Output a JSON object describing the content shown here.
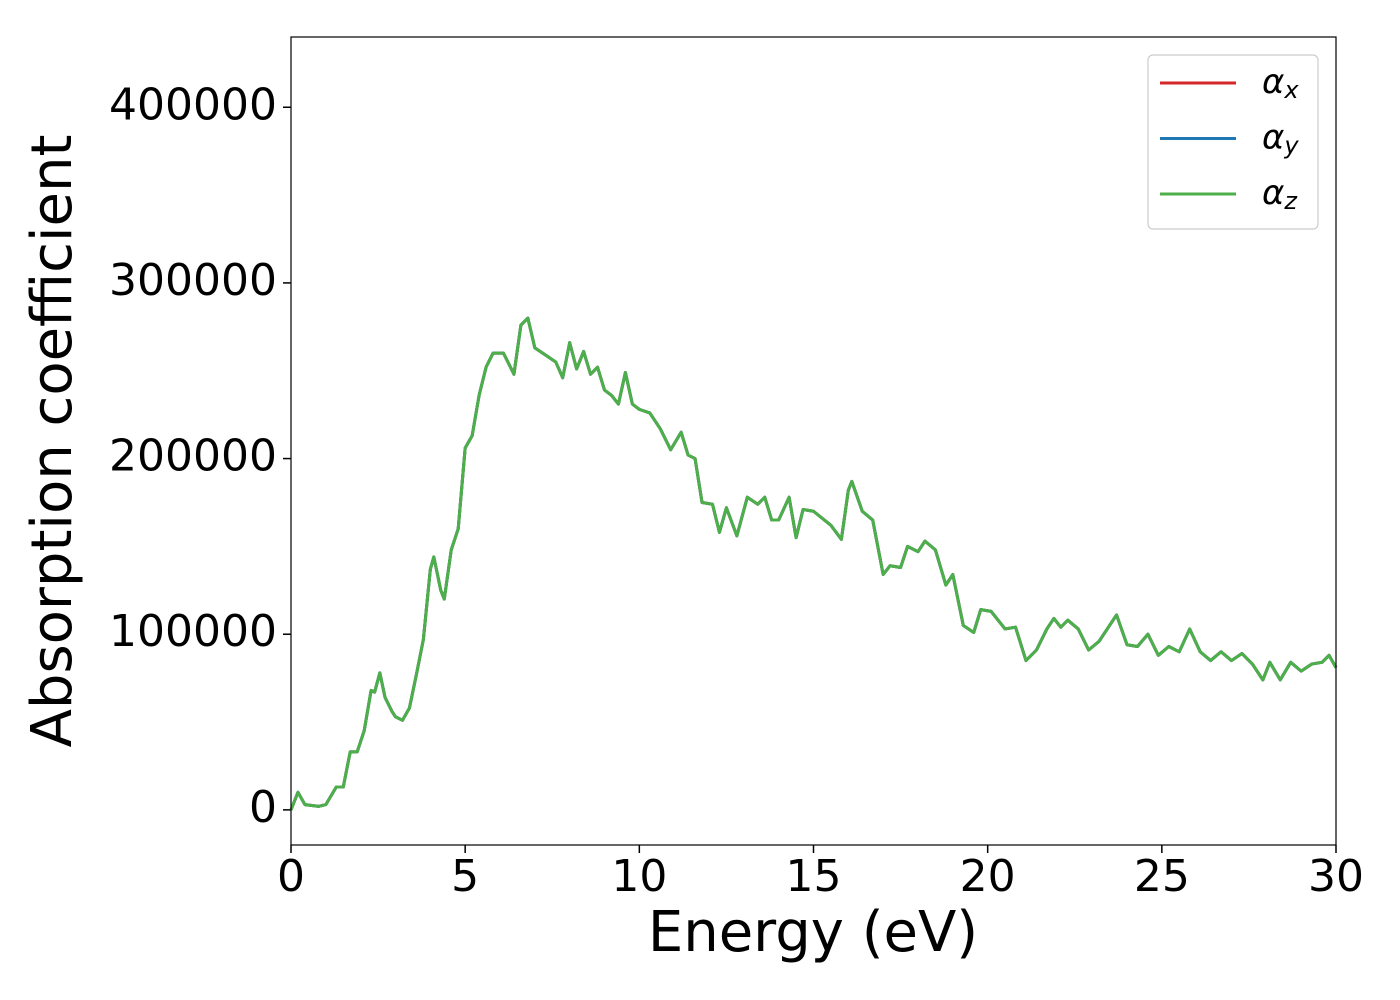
{
  "chart_data": {
    "type": "line",
    "xlabel": "Energy (eV)",
    "ylabel": "Absorption coefficient",
    "x": [
      0,
      0.2,
      0.4,
      0.8,
      1.0,
      1.3,
      1.5,
      1.7,
      1.9,
      2.1,
      2.3,
      2.4,
      2.55,
      2.7,
      2.9,
      3.0,
      3.2,
      3.4,
      3.6,
      3.8,
      4.0,
      4.1,
      4.3,
      4.4,
      4.6,
      4.8,
      5.0,
      5.2,
      5.4,
      5.6,
      5.8,
      6.1,
      6.4,
      6.6,
      6.8,
      7.0,
      7.3,
      7.6,
      7.8,
      8.0,
      8.2,
      8.4,
      8.6,
      8.8,
      9.0,
      9.2,
      9.4,
      9.6,
      9.8,
      10.0,
      10.3,
      10.6,
      10.9,
      11.2,
      11.4,
      11.6,
      11.8,
      12.1,
      12.3,
      12.5,
      12.8,
      13.1,
      13.4,
      13.6,
      13.8,
      14.0,
      14.3,
      14.5,
      14.7,
      15.0,
      15.5,
      15.8,
      16.0,
      16.1,
      16.4,
      16.7,
      17.0,
      17.2,
      17.5,
      17.7,
      18.0,
      18.2,
      18.5,
      18.8,
      19.0,
      19.3,
      19.6,
      19.8,
      20.1,
      20.5,
      20.8,
      21.1,
      21.4,
      21.7,
      21.9,
      22.1,
      22.3,
      22.6,
      22.9,
      23.2,
      23.5,
      23.7,
      24.0,
      24.3,
      24.6,
      24.9,
      25.2,
      25.5,
      25.8,
      26.1,
      26.4,
      26.7,
      27.0,
      27.3,
      27.6,
      27.9,
      28.1,
      28.4,
      28.7,
      29.0,
      29.3,
      29.6,
      29.8,
      30.0
    ],
    "series": [
      {
        "name": "αx",
        "color": "#d62728",
        "values": [
          0,
          10000,
          3000,
          2000,
          3000,
          13000,
          13000,
          33000,
          33000,
          45000,
          68000,
          67000,
          78000,
          64000,
          56000,
          53000,
          51000,
          58000,
          77000,
          97000,
          137000,
          144000,
          125000,
          120000,
          148000,
          160000,
          206000,
          213000,
          236000,
          252000,
          260000,
          260000,
          248000,
          276000,
          280000,
          263000,
          259000,
          255000,
          246000,
          266000,
          251000,
          261000,
          248000,
          252000,
          239000,
          236000,
          231000,
          249000,
          231000,
          228000,
          226000,
          217000,
          205000,
          215000,
          202000,
          200000,
          175000,
          174000,
          158000,
          172000,
          156000,
          178000,
          174000,
          178000,
          165000,
          165000,
          178000,
          155000,
          171000,
          170000,
          162000,
          154000,
          182000,
          187000,
          170000,
          165000,
          134000,
          139000,
          138000,
          150000,
          147000,
          153000,
          148000,
          128000,
          134000,
          105000,
          101000,
          114000,
          113000,
          103000,
          104000,
          85000,
          91000,
          103000,
          109000,
          104000,
          108000,
          103000,
          91000,
          96000,
          105000,
          111000,
          94000,
          93000,
          100000,
          88000,
          93000,
          90000,
          103000,
          90000,
          85000,
          90000,
          85000,
          89000,
          83000,
          74000,
          84000,
          74000,
          84000,
          79000,
          83000,
          84000,
          88000,
          81000
        ]
      },
      {
        "name": "αy",
        "color": "#1f77b4",
        "values": [
          0,
          10000,
          3000,
          2000,
          3000,
          13000,
          13000,
          33000,
          33000,
          45000,
          68000,
          67000,
          78000,
          64000,
          56000,
          53000,
          51000,
          58000,
          77000,
          97000,
          137000,
          144000,
          125000,
          120000,
          148000,
          160000,
          206000,
          213000,
          236000,
          252000,
          260000,
          260000,
          248000,
          276000,
          280000,
          263000,
          259000,
          255000,
          246000,
          266000,
          251000,
          261000,
          248000,
          252000,
          239000,
          236000,
          231000,
          249000,
          231000,
          228000,
          226000,
          217000,
          205000,
          215000,
          202000,
          200000,
          175000,
          174000,
          158000,
          172000,
          156000,
          178000,
          174000,
          178000,
          165000,
          165000,
          178000,
          155000,
          171000,
          170000,
          162000,
          154000,
          182000,
          187000,
          170000,
          165000,
          134000,
          139000,
          138000,
          150000,
          147000,
          153000,
          148000,
          128000,
          134000,
          105000,
          101000,
          114000,
          113000,
          103000,
          104000,
          85000,
          91000,
          103000,
          109000,
          104000,
          108000,
          103000,
          91000,
          96000,
          105000,
          111000,
          94000,
          93000,
          100000,
          88000,
          93000,
          90000,
          103000,
          90000,
          85000,
          90000,
          85000,
          89000,
          83000,
          74000,
          84000,
          74000,
          84000,
          79000,
          83000,
          84000,
          88000,
          81000
        ]
      },
      {
        "name": "αz",
        "color": "#4daf4a",
        "values": [
          0,
          10000,
          3000,
          2000,
          3000,
          13000,
          13000,
          33000,
          33000,
          45000,
          68000,
          67000,
          78000,
          64000,
          56000,
          53000,
          51000,
          58000,
          77000,
          97000,
          137000,
          144000,
          125000,
          120000,
          148000,
          160000,
          206000,
          213000,
          236000,
          252000,
          260000,
          260000,
          248000,
          276000,
          280000,
          263000,
          259000,
          255000,
          246000,
          266000,
          251000,
          261000,
          248000,
          252000,
          239000,
          236000,
          231000,
          249000,
          231000,
          228000,
          226000,
          217000,
          205000,
          215000,
          202000,
          200000,
          175000,
          174000,
          158000,
          172000,
          156000,
          178000,
          174000,
          178000,
          165000,
          165000,
          178000,
          155000,
          171000,
          170000,
          162000,
          154000,
          182000,
          187000,
          170000,
          165000,
          134000,
          139000,
          138000,
          150000,
          147000,
          153000,
          148000,
          128000,
          134000,
          105000,
          101000,
          114000,
          113000,
          103000,
          104000,
          85000,
          91000,
          103000,
          109000,
          104000,
          108000,
          103000,
          91000,
          96000,
          105000,
          111000,
          94000,
          93000,
          100000,
          88000,
          93000,
          90000,
          103000,
          90000,
          85000,
          90000,
          85000,
          89000,
          83000,
          74000,
          84000,
          74000,
          84000,
          79000,
          83000,
          84000,
          88000,
          81000
        ]
      }
    ],
    "xlim": [
      0,
      30
    ],
    "xticks": [
      0,
      5,
      10,
      15,
      20,
      25,
      30
    ],
    "ylim": [
      -20000,
      440000
    ],
    "yticks": [
      0,
      100000,
      200000,
      300000,
      400000
    ],
    "legend": "upper right"
  }
}
